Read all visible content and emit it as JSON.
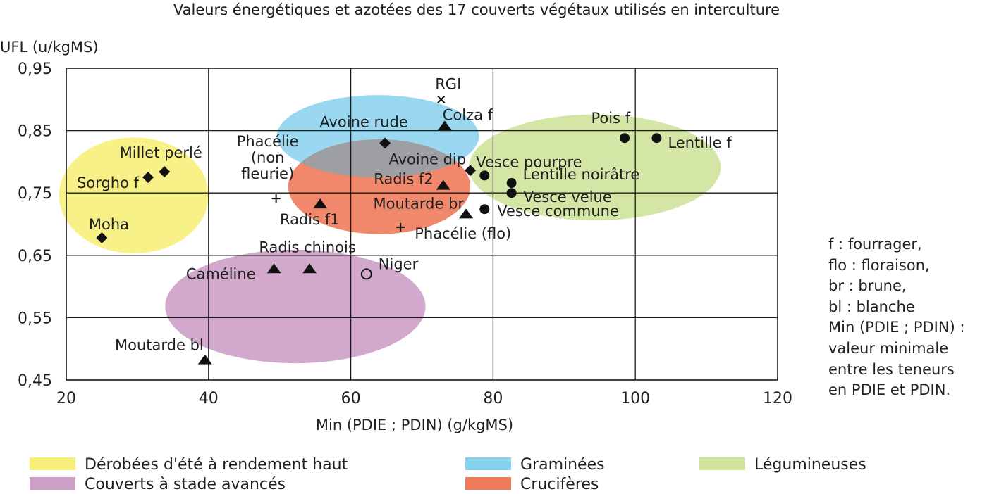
{
  "chart_data": {
    "type": "scatter",
    "title": "Valeurs énergétiques et azotées des 17 couverts végétaux utilisés en interculture",
    "xlabel": "Min (PDIE ; PDIN) (g/kgMS)",
    "ylabel": "UFL (u/kgMS)",
    "xlim": [
      20,
      120
    ],
    "ylim": [
      0.45,
      0.95
    ],
    "xticks": [
      20,
      40,
      60,
      80,
      100,
      120
    ],
    "xtick_labels": [
      "20",
      "40",
      "60",
      "80",
      "100",
      "120"
    ],
    "yticks": [
      0.45,
      0.55,
      0.65,
      0.75,
      0.85,
      0.95
    ],
    "ytick_labels": [
      "0,45",
      "0,55",
      "0,65",
      "0,75",
      "0,85",
      "0,95"
    ],
    "grid": true,
    "groups": [
      {
        "key": "ete",
        "name": "Dérobées d'été à rendement haut",
        "color": "#f6f07a",
        "cx": 29.5,
        "cy": 0.746,
        "rx": 10.5,
        "ry": 0.093
      },
      {
        "key": "avance",
        "name": "Couverts à stade avancés",
        "color": "#cd9ec6",
        "cx": 52.2,
        "cy": 0.568,
        "rx": 18.3,
        "ry": 0.091
      },
      {
        "key": "legum",
        "name": "Légumineuses",
        "color": "#cfe39c",
        "cx": 94.3,
        "cy": 0.791,
        "rx": 17.7,
        "ry": 0.085
      },
      {
        "key": "gram",
        "name": "Graminées",
        "color": "#88d1ee",
        "cx": 63.8,
        "cy": 0.841,
        "rx": 14.2,
        "ry": 0.066
      },
      {
        "key": "cruci",
        "name": "Crucifères",
        "color": "#f07b5b",
        "cx": 64.0,
        "cy": 0.76,
        "rx": 12.8,
        "ry": 0.076
      }
    ],
    "points": [
      {
        "label": "Millet perlé",
        "x": 33.8,
        "y": 0.784,
        "marker": "diamond",
        "dx": -5,
        "dy": -20,
        "anchor": "middle"
      },
      {
        "label": "Sorgho f",
        "x": 31.5,
        "y": 0.775,
        "marker": "diamond",
        "dx": -13,
        "dy": 15,
        "anchor": "end"
      },
      {
        "label": "Moha",
        "x": 25.0,
        "y": 0.678,
        "marker": "diamond",
        "dx": 10,
        "dy": -12,
        "anchor": "middle"
      },
      {
        "label": "Moutarde bl",
        "x": 39.5,
        "y": 0.482,
        "marker": "triangle",
        "dx": -2,
        "dy": -14,
        "anchor": "end"
      },
      {
        "label": "Caméline",
        "x": 49.2,
        "y": 0.628,
        "marker": "triangle",
        "dx": -26,
        "dy": 14,
        "anchor": "end"
      },
      {
        "label": "Radis chinois",
        "x": 54.2,
        "y": 0.628,
        "marker": "triangle",
        "dx": -3,
        "dy": -24,
        "anchor": "middle"
      },
      {
        "label": "Niger",
        "x": 62.2,
        "y": 0.62,
        "marker": "circle-open",
        "dx": 17,
        "dy": -7,
        "anchor": "start"
      },
      {
        "label": "Phacélie\n(non\nfleurie)",
        "x": 49.5,
        "y": 0.741,
        "marker": "plus",
        "dx": -12,
        "dy": -74,
        "anchor": "middle"
      },
      {
        "label": "Radis f1",
        "x": 55.7,
        "y": 0.732,
        "marker": "triangle",
        "dx": -15,
        "dy": 29,
        "anchor": "middle"
      },
      {
        "label": "Phacélie (flo)",
        "x": 67.0,
        "y": 0.695,
        "marker": "plus",
        "dx": 20,
        "dy": 16,
        "anchor": "start"
      },
      {
        "label": "Avoine rude",
        "x": 64.8,
        "y": 0.83,
        "marker": "diamond",
        "dx": -30,
        "dy": -23,
        "anchor": "middle"
      },
      {
        "label": "RGI",
        "x": 72.7,
        "y": 0.9,
        "marker": "cross",
        "dx": 10,
        "dy": -15,
        "anchor": "middle"
      },
      {
        "label": "Colza f",
        "x": 73.2,
        "y": 0.857,
        "marker": "triangle",
        "dx": -3,
        "dy": -9,
        "anchor": "start"
      },
      {
        "label": "Avoine dip",
        "x": 76.8,
        "y": 0.786,
        "marker": "diamond",
        "dx": -6,
        "dy": -9,
        "anchor": "end"
      },
      {
        "label": "Radis f2",
        "x": 73.0,
        "y": 0.762,
        "marker": "triangle",
        "dx": -14,
        "dy": -2,
        "anchor": "end"
      },
      {
        "label": "Moutarde br",
        "x": 76.2,
        "y": 0.716,
        "marker": "triangle",
        "dx": -3,
        "dy": -8,
        "anchor": "end"
      },
      {
        "label": "Vesce pourpre",
        "x": 78.8,
        "y": 0.778,
        "marker": "dot",
        "dx": -12,
        "dy": -12,
        "anchor": "start"
      },
      {
        "label": "Lentille noirâtre",
        "x": 82.6,
        "y": 0.766,
        "marker": "dot",
        "dx": 16,
        "dy": -5,
        "anchor": "start"
      },
      {
        "label": "Vesce velue",
        "x": 82.6,
        "y": 0.75,
        "marker": "dot",
        "dx": 17,
        "dy": 13,
        "anchor": "start"
      },
      {
        "label": "Vesce commune",
        "x": 78.8,
        "y": 0.724,
        "marker": "dot",
        "dx": 18,
        "dy": 10,
        "anchor": "start"
      },
      {
        "label": "Pois f",
        "x": 98.5,
        "y": 0.838,
        "marker": "dot",
        "dx": 8,
        "dy": -21,
        "anchor": "end"
      },
      {
        "label": "Lentille f",
        "x": 103.0,
        "y": 0.838,
        "marker": "dot",
        "dx": 16,
        "dy": 14,
        "anchor": "start"
      }
    ]
  },
  "notes": [
    "f : fourrager,",
    "flo : floraison,",
    "br : brune,",
    "bl : blanche",
    "Min (PDIE ; PDIN) :",
    "valeur minimale",
    "entre les teneurs",
    "en PDIE et PDIN."
  ]
}
